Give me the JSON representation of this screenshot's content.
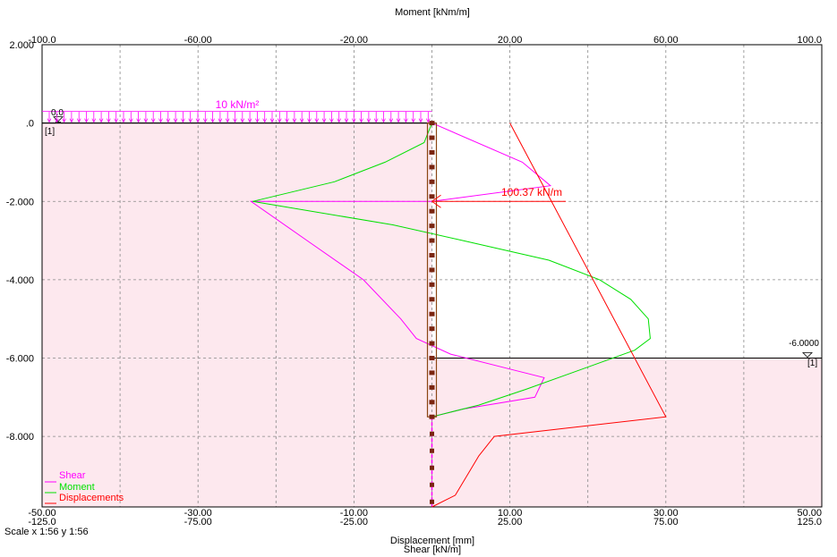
{
  "chart_data": {
    "type": "line",
    "top_axis": {
      "label": "Moment [kNm/m]",
      "range": [
        -100,
        100
      ],
      "ticks": [
        -100,
        -60,
        -20,
        20,
        60,
        100
      ],
      "tick_labels": [
        "-100.0",
        "-60.00",
        "-20.00",
        "20.00",
        "60.00",
        "100.0"
      ]
    },
    "bottom_axis": {
      "label_1": "Displacement [mm]",
      "label_2": "Shear [kN/m]",
      "displacement_range": [
        -50,
        50
      ],
      "shear_range": [
        -125,
        125
      ],
      "ticks_displacement": [
        -50,
        -30,
        -10,
        10,
        30,
        50
      ],
      "tick_labels_displacement": [
        "-50.00",
        "-30.00",
        "-10.00",
        "10.00",
        "30.00",
        "50.00"
      ],
      "ticks_shear": [
        -125,
        -75,
        -25,
        25,
        75,
        125
      ],
      "tick_labels_shear": [
        "-125.0",
        "-75.00",
        "-25.00",
        "25.00",
        "75.00",
        "125.0"
      ]
    },
    "y_axis": {
      "range": [
        -9.8,
        2.0
      ],
      "ticks": [
        2,
        0,
        -2,
        -4,
        -6,
        -8
      ],
      "tick_labels": [
        "2.000",
        ".0",
        "-2.000",
        "-4.000",
        "-6.000",
        "-8.000"
      ]
    },
    "grid": true,
    "scale_text": "Scale x 1:56  y 1:56",
    "legend": {
      "placement": "bottom-left",
      "entries": [
        {
          "name": "Shear",
          "color": "#ff00ff"
        },
        {
          "name": "Moment",
          "color": "#00e000"
        },
        {
          "name": "Displacements",
          "color": "#ff0000"
        }
      ]
    },
    "series": [
      {
        "name": "Shear",
        "color": "#ff00ff",
        "x_unit": "kN/m",
        "points": [
          [
            0,
            0
          ],
          [
            29,
            -1
          ],
          [
            38,
            -1.6
          ],
          [
            0,
            -2
          ],
          [
            -58,
            -2
          ],
          [
            -40,
            -3
          ],
          [
            -22,
            -4
          ],
          [
            -10,
            -5
          ],
          [
            -5,
            -5.5
          ],
          [
            6,
            -5.9
          ],
          [
            26,
            -6.3
          ],
          [
            36,
            -6.5
          ],
          [
            33,
            -7.0
          ],
          [
            10,
            -7.3
          ],
          [
            0,
            -7.5
          ]
        ]
      },
      {
        "name": "Moment",
        "color": "#00e000",
        "x_unit": "kNm/m",
        "points": [
          [
            0,
            0
          ],
          [
            -2,
            -0.5
          ],
          [
            -12,
            -1.0
          ],
          [
            -25,
            -1.5
          ],
          [
            -46,
            -2.0
          ],
          [
            -10,
            -2.6
          ],
          [
            8,
            -3.0
          ],
          [
            30,
            -3.5
          ],
          [
            43,
            -4.0
          ],
          [
            51,
            -4.5
          ],
          [
            55.5,
            -5.0
          ],
          [
            56,
            -5.5
          ],
          [
            52,
            -5.8
          ],
          [
            38,
            -6.3
          ],
          [
            24,
            -6.8
          ],
          [
            12,
            -7.2
          ],
          [
            0,
            -7.5
          ]
        ]
      },
      {
        "name": "Displacements",
        "color": "#ff0000",
        "x_unit": "mm",
        "points": [
          [
            10,
            0
          ],
          [
            30,
            -7.5
          ],
          [
            8,
            -8.0
          ],
          [
            6,
            -8.5
          ],
          [
            3,
            -9.5
          ],
          [
            0,
            -9.8
          ]
        ]
      }
    ],
    "surcharge": {
      "label": "10 kN/m²",
      "color": "#ff00ff"
    },
    "anchor": {
      "label": "100.37 kN/m",
      "color": "#ff0000",
      "level": -2.0
    },
    "ground_left": {
      "level_label": "0.0",
      "layer_label": "[1]",
      "level": 0.0
    },
    "ground_right": {
      "level_label": "-6.0000",
      "layer_label": "[1]",
      "level": -6.0
    },
    "wall": {
      "top": 0,
      "bottom": -7.5
    },
    "colors": {
      "soil_fill": "#fde8ee",
      "grid": "#888888",
      "wall": "#8b4513",
      "wall_node": "#7a2510"
    }
  }
}
